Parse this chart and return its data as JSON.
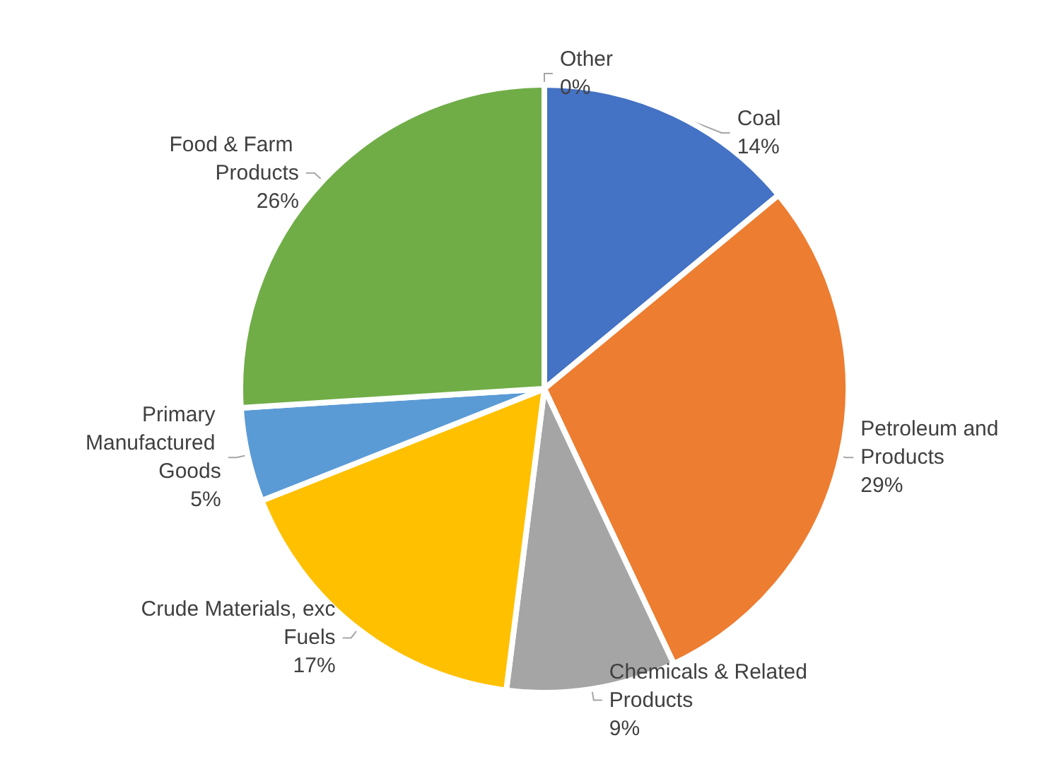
{
  "chart_data": {
    "type": "pie",
    "categories": [
      "Coal",
      "Petroleum and Products",
      "Chemicals & Related Products",
      "Crude Materials, exc Fuels",
      "Primary Manufactured Goods",
      "Food & Farm Products",
      "Other"
    ],
    "values": [
      14,
      29,
      9,
      17,
      5,
      26,
      0
    ],
    "value_labels": [
      "14%",
      "29%",
      "9%",
      "17%",
      "5%",
      "26%",
      "0%"
    ],
    "colors": [
      "#4472c4",
      "#ed7d31",
      "#a5a5a5",
      "#ffc000",
      "#5b9bd5",
      "#70ad47",
      "#264478"
    ],
    "legend": false
  }
}
